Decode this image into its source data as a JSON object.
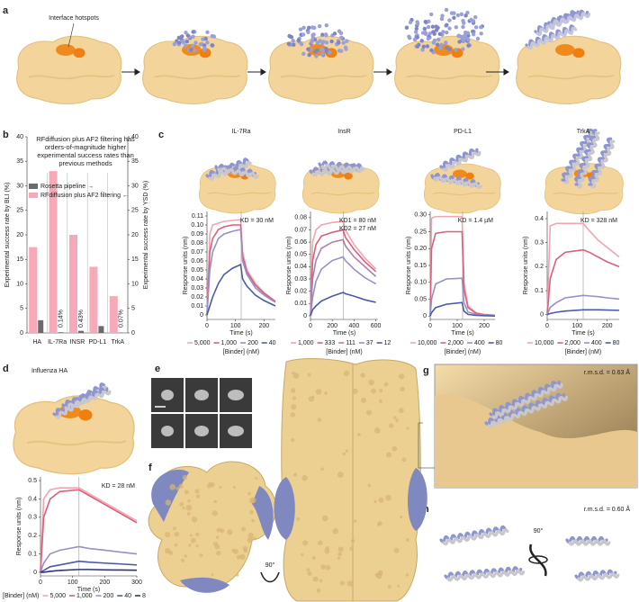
{
  "panels": {
    "a": "a",
    "b": "b",
    "c": "c",
    "d": "d",
    "e": "e",
    "f": "f",
    "g": "g",
    "h": "h"
  },
  "panel_a": {
    "annotation": "Interface hotspots"
  },
  "panel_f": {
    "rotation": "90°"
  },
  "panel_g": {
    "annotation": "r.m.s.d. = 0.63 Å"
  },
  "panel_h": {
    "annotation": "r.m.s.d. = 0.60 Å",
    "rotation": "90°"
  },
  "chart_data": [
    {
      "type": "bar",
      "annotation": "RFdiffusion plus AF2 filtering has orders-of-magnitude higher experimental success rates than previous methods",
      "categories": [
        "HA",
        "IL-7Ra",
        "INSR",
        "PD-L1",
        "TrkA"
      ],
      "ylabel": "Experimental success rate by BLI (%)",
      "y2label": "Experimental success rate by YSD (%)",
      "ylim": [
        0,
        40
      ],
      "yticks": [
        0,
        5,
        10,
        15,
        20,
        25,
        30,
        35,
        40
      ],
      "y2lim": [
        0,
        40
      ],
      "y2ticks": [
        0,
        5,
        10,
        15,
        20,
        25,
        30,
        35,
        40
      ],
      "legend": "upper left",
      "series": [
        {
          "name": "Rosetta pipeline →",
          "color": "#6b6b6b",
          "axis": "y2",
          "values": [
            2.6,
            0.14,
            0.43,
            1.4,
            0.07
          ],
          "value_labels": [
            null,
            "0.14%",
            "0.43%",
            null,
            "0.07%"
          ]
        },
        {
          "name": "RFdiffusion plus AF2 filtering ←",
          "color": "#f7a9b8",
          "values": [
            17.5,
            33,
            20,
            13.5,
            7.5
          ]
        }
      ]
    },
    {
      "type": "line",
      "title": "IL-7Ra",
      "xlabel": "Time (s)",
      "ylabel": "Response units (nm)",
      "annotations": [
        "KD = 30 nM"
      ],
      "legend_title": "[Binder] (nM)",
      "xlim": [
        0,
        240
      ],
      "xticks": [
        0,
        100,
        200
      ],
      "ylim": [
        -0.005,
        0.115
      ],
      "yticks": [
        0,
        0.01,
        0.02,
        0.03,
        0.04,
        0.05,
        0.06,
        0.07,
        0.08,
        0.09,
        {
          "value": 0.1,
          "label": "0.10"
        },
        0.11
      ],
      "vline": 120,
      "x": [
        0,
        10,
        20,
        40,
        60,
        90,
        118,
        125,
        140,
        170,
        200,
        240
      ],
      "series": [
        {
          "name": "5,000",
          "color": "#f4a3b0",
          "values": [
            0,
            0.09,
            0.1,
            0.102,
            0.104,
            0.105,
            0.106,
            0.07,
            0.05,
            0.035,
            0.025,
            0.015
          ]
        },
        {
          "name": "1,000",
          "color": "#d9607a",
          "values": [
            0,
            0.07,
            0.085,
            0.095,
            0.098,
            0.1,
            0.1,
            0.065,
            0.048,
            0.033,
            0.024,
            0.015
          ]
        },
        {
          "name": "200",
          "color": "#9a8fc6",
          "values": [
            0,
            0.05,
            0.07,
            0.085,
            0.09,
            0.093,
            0.095,
            0.06,
            0.045,
            0.03,
            0.022,
            0.014
          ]
        },
        {
          "name": "40",
          "color": "#4b5aa8",
          "values": [
            0,
            0.01,
            0.02,
            0.035,
            0.045,
            0.052,
            0.056,
            0.04,
            0.032,
            0.022,
            0.016,
            0.01
          ]
        }
      ]
    },
    {
      "type": "line",
      "title": "InsR",
      "xlabel": "Time (s)",
      "ylabel": "Response units (nm)",
      "annotations": [
        "KD1 = 80 nM",
        "KD2 = 27 nM"
      ],
      "legend_title": "[Binder] (nM)",
      "xlim": [
        0,
        620
      ],
      "xticks": [
        0,
        200,
        400,
        600
      ],
      "ylim": [
        -0.003,
        0.085
      ],
      "yticks": [
        0,
        0.01,
        0.02,
        0.03,
        0.04,
        0.05,
        0.06,
        0.07,
        0.08
      ],
      "vline": 300,
      "x": [
        0,
        20,
        50,
        100,
        200,
        300,
        320,
        400,
        500,
        600
      ],
      "series": [
        {
          "name": "1,000",
          "color": "#f4a3b0",
          "values": [
            0,
            0.06,
            0.07,
            0.074,
            0.076,
            0.077,
            0.07,
            0.058,
            0.047,
            0.038
          ]
        },
        {
          "name": "333",
          "color": "#d9607a",
          "values": [
            0,
            0.045,
            0.058,
            0.065,
            0.068,
            0.07,
            0.064,
            0.054,
            0.044,
            0.036
          ]
        },
        {
          "name": "111",
          "color": "#b07fa8",
          "values": [
            0,
            0.03,
            0.045,
            0.055,
            0.06,
            0.062,
            0.057,
            0.048,
            0.04,
            0.032
          ]
        },
        {
          "name": "37",
          "color": "#9a8fc6",
          "values": [
            0,
            0.015,
            0.028,
            0.038,
            0.045,
            0.048,
            0.045,
            0.038,
            0.031,
            0.026
          ]
        },
        {
          "name": "12",
          "color": "#4b5aa8",
          "values": [
            0,
            0.005,
            0.008,
            0.012,
            0.016,
            0.019,
            0.018,
            0.016,
            0.013,
            0.011
          ]
        }
      ]
    },
    {
      "type": "line",
      "title": "PD-L1",
      "xlabel": "Time (s)",
      "ylabel": "Response units (nm)",
      "annotations": [
        "KD = 1.4 µM"
      ],
      "legend_title": "[Binder] (nM)",
      "xlim": [
        0,
        240
      ],
      "xticks": [
        0,
        100,
        200
      ],
      "ylim": [
        -0.01,
        0.31
      ],
      "yticks": [
        0,
        0.05,
        {
          "value": 0.1,
          "label": "0.10"
        },
        0.15,
        {
          "value": 0.2,
          "label": "0.20"
        },
        0.25,
        {
          "value": 0.3,
          "label": "0.30"
        }
      ],
      "vline": 120,
      "x": [
        0,
        5,
        20,
        60,
        118,
        125,
        140,
        170,
        200,
        240
      ],
      "series": [
        {
          "name": "10,000",
          "color": "#f4a3b0",
          "values": [
            0,
            0.29,
            0.295,
            0.295,
            0.295,
            0.1,
            0.03,
            0.01,
            0.005,
            0.003
          ]
        },
        {
          "name": "2,000",
          "color": "#d9607a",
          "values": [
            0,
            0.2,
            0.245,
            0.25,
            0.25,
            0.08,
            0.025,
            0.008,
            0.004,
            0.002
          ]
        },
        {
          "name": "400",
          "color": "#9a8fc6",
          "values": [
            0,
            0.05,
            0.095,
            0.11,
            0.112,
            0.04,
            0.012,
            0.005,
            0.002,
            0.001
          ]
        },
        {
          "name": "80",
          "color": "#4b5aa8",
          "values": [
            0,
            0.01,
            0.025,
            0.035,
            0.04,
            0.015,
            0.005,
            0.002,
            0.001,
            0
          ]
        }
      ]
    },
    {
      "type": "line",
      "title": "TrkA",
      "xlabel": "Time (s)",
      "ylabel": "Response units (nm)",
      "annotations": [
        "KD = 328 nM"
      ],
      "legend_title": "[Binder] (nM)",
      "xlim": [
        0,
        240
      ],
      "xticks": [
        0,
        100,
        200
      ],
      "ylim": [
        -0.02,
        0.43
      ],
      "yticks": [
        0,
        0.1,
        0.2,
        0.3,
        0.4
      ],
      "vline": 120,
      "x": [
        0,
        10,
        30,
        60,
        120,
        140,
        170,
        200,
        240
      ],
      "series": [
        {
          "name": "10,000",
          "color": "#f4a3b0",
          "values": [
            0,
            0.37,
            0.38,
            0.38,
            0.38,
            0.35,
            0.31,
            0.28,
            0.24
          ]
        },
        {
          "name": "2,000",
          "color": "#d9607a",
          "values": [
            0,
            0.15,
            0.23,
            0.26,
            0.27,
            0.26,
            0.24,
            0.22,
            0.2
          ]
        },
        {
          "name": "400",
          "color": "#9a8fc6",
          "values": [
            0,
            0.03,
            0.05,
            0.07,
            0.08,
            0.078,
            0.075,
            0.07,
            0.065
          ]
        },
        {
          "name": "80",
          "color": "#4b5aa8",
          "values": [
            0,
            0.005,
            0.01,
            0.015,
            0.02,
            0.02,
            0.02,
            0.019,
            0.018
          ]
        }
      ]
    },
    {
      "type": "line",
      "title": "Influenza HA",
      "xlabel": "Time (s)",
      "ylabel": "Response units (nm)",
      "annotations": [
        "KD = 28 nM"
      ],
      "legend_title": "[Binder] (nM)",
      "xlim": [
        0,
        300
      ],
      "xticks": [
        0,
        100,
        200,
        300
      ],
      "ylim": [
        -0.02,
        0.52
      ],
      "yticks": [
        0,
        0.1,
        0.2,
        0.3,
        0.4,
        0.5
      ],
      "vline": 120,
      "x": [
        0,
        10,
        30,
        60,
        120,
        150,
        200,
        250,
        300
      ],
      "series": [
        {
          "name": "5,000",
          "color": "#f4a3b0",
          "values": [
            0,
            0.4,
            0.45,
            0.46,
            0.46,
            0.43,
            0.38,
            0.33,
            0.28
          ]
        },
        {
          "name": "1,000",
          "color": "#d9607a",
          "values": [
            0,
            0.3,
            0.4,
            0.44,
            0.45,
            0.42,
            0.37,
            0.32,
            0.27
          ]
        },
        {
          "name": "200",
          "color": "#9a8fc6",
          "values": [
            0,
            0.05,
            0.1,
            0.12,
            0.14,
            0.13,
            0.12,
            0.11,
            0.1
          ]
        },
        {
          "name": "40",
          "color": "#4b5aa8",
          "values": [
            0,
            0.01,
            0.03,
            0.04,
            0.06,
            0.055,
            0.05,
            0.045,
            0.04
          ]
        },
        {
          "name": "8",
          "color": "#2c3577",
          "values": [
            0,
            0,
            0.005,
            0.01,
            0.015,
            0.015,
            0.013,
            0.012,
            0.011
          ]
        }
      ]
    }
  ]
}
